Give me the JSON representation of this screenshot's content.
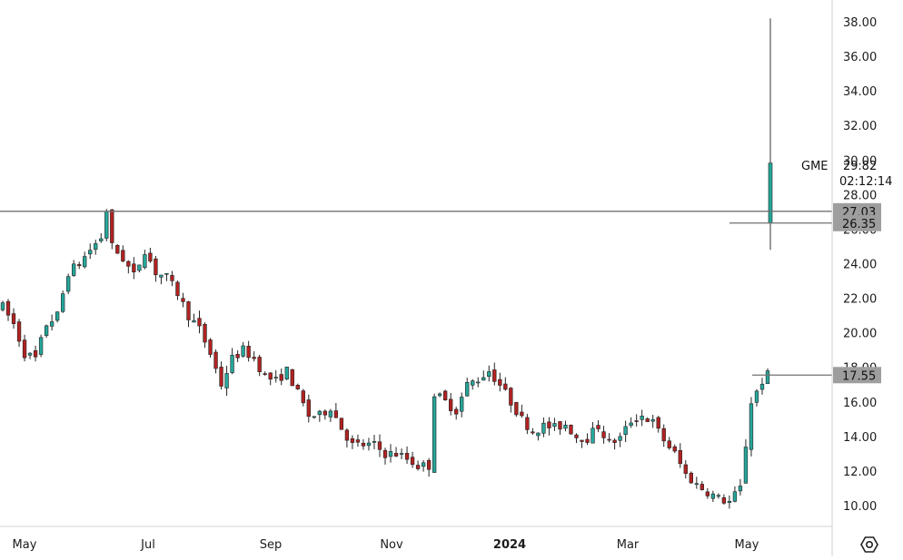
{
  "chart_data": {
    "type": "candlestick",
    "symbol": "GME",
    "last_price": "29.82",
    "countdown": "02:12:14",
    "y_axis": {
      "range": [
        9.0,
        39.0
      ],
      "ticks": [
        "10.00",
        "12.00",
        "14.00",
        "16.00",
        "18.00",
        "20.00",
        "22.00",
        "24.00",
        "26.00",
        "28.00",
        "30.00",
        "32.00",
        "34.00",
        "36.00",
        "38.00"
      ]
    },
    "x_axis": {
      "labels": [
        {
          "text": "May",
          "bold": false
        },
        {
          "text": "Jul",
          "bold": false
        },
        {
          "text": "Sep",
          "bold": false
        },
        {
          "text": "Nov",
          "bold": false
        },
        {
          "text": "2024",
          "bold": true
        },
        {
          "text": "Mar",
          "bold": false
        },
        {
          "text": "May",
          "bold": false
        }
      ]
    },
    "horizontal_lines": [
      {
        "value": 27.03,
        "label": "27.03"
      },
      {
        "value": 26.35,
        "label": "26.35"
      },
      {
        "value": 17.55,
        "label": "17.55"
      }
    ],
    "colors": {
      "up": "#26a69a",
      "down": "#b22222",
      "line": "#707070",
      "badge": "#9e9e9e"
    },
    "spike_candle": {
      "open": 26.35,
      "high": 38.2,
      "low": 24.8,
      "close": 29.82
    },
    "price_path": [
      [
        0,
        21.5
      ],
      [
        2,
        20.5
      ],
      [
        4,
        18.8
      ],
      [
        6,
        18.5
      ],
      [
        8,
        20.5
      ],
      [
        10,
        21.0
      ],
      [
        12,
        23.5
      ],
      [
        14,
        24.0
      ],
      [
        16,
        24.8
      ],
      [
        18,
        25.5
      ],
      [
        19,
        27.1
      ],
      [
        20,
        25.0
      ],
      [
        22,
        24.3
      ],
      [
        24,
        23.3
      ],
      [
        26,
        24.8
      ],
      [
        28,
        23.5
      ],
      [
        30,
        23.2
      ],
      [
        32,
        22.3
      ],
      [
        34,
        21.0
      ],
      [
        36,
        20.2
      ],
      [
        38,
        18.8
      ],
      [
        40,
        17.0
      ],
      [
        42,
        18.5
      ],
      [
        44,
        19.0
      ],
      [
        46,
        18.5
      ],
      [
        48,
        17.5
      ],
      [
        50,
        17.2
      ],
      [
        52,
        17.8
      ],
      [
        54,
        16.5
      ],
      [
        56,
        15.2
      ],
      [
        58,
        15.2
      ],
      [
        60,
        15.7
      ],
      [
        62,
        14.5
      ],
      [
        64,
        13.5
      ],
      [
        66,
        13.5
      ],
      [
        68,
        13.5
      ],
      [
        70,
        13.0
      ],
      [
        72,
        13.0
      ],
      [
        74,
        12.7
      ],
      [
        76,
        12.3
      ],
      [
        78,
        12.3
      ],
      [
        79,
        16.5
      ],
      [
        81,
        16.0
      ],
      [
        83,
        15.5
      ],
      [
        85,
        17.0
      ],
      [
        87,
        17.3
      ],
      [
        89,
        17.8
      ],
      [
        91,
        17.0
      ],
      [
        93,
        16.0
      ],
      [
        95,
        15.0
      ],
      [
        97,
        14.3
      ],
      [
        99,
        14.6
      ],
      [
        101,
        14.5
      ],
      [
        103,
        14.7
      ],
      [
        105,
        14.0
      ],
      [
        107,
        13.9
      ],
      [
        109,
        14.6
      ],
      [
        111,
        13.6
      ],
      [
        113,
        13.9
      ],
      [
        115,
        14.9
      ],
      [
        117,
        15.2
      ],
      [
        119,
        14.8
      ],
      [
        121,
        13.8
      ],
      [
        123,
        13.0
      ],
      [
        125,
        11.8
      ],
      [
        127,
        11.2
      ],
      [
        129,
        10.8
      ],
      [
        131,
        10.4
      ],
      [
        133,
        10.2
      ],
      [
        135,
        11.0
      ],
      [
        137,
        16.0
      ],
      [
        139,
        17.2
      ],
      [
        140,
        17.55
      ]
    ]
  }
}
